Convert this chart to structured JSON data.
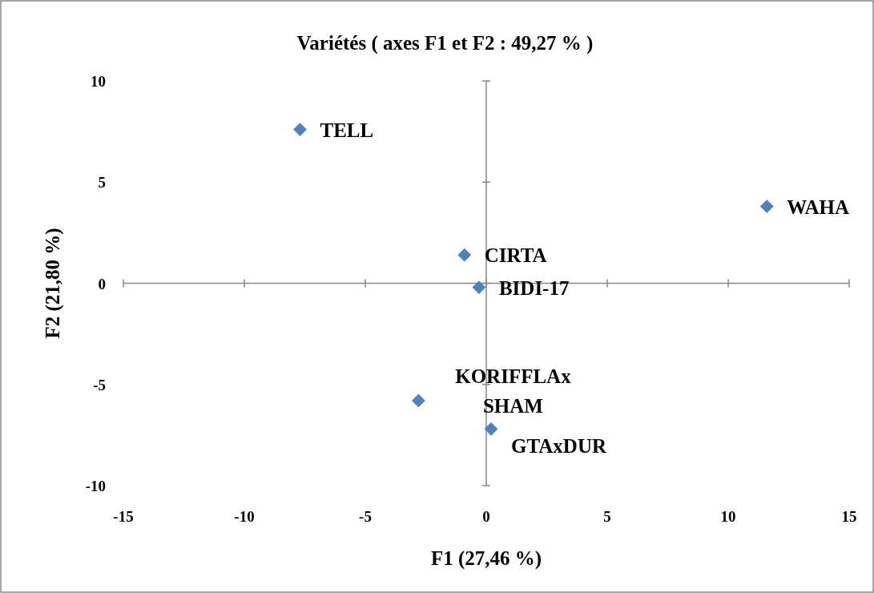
{
  "chart_data": {
    "type": "scatter",
    "title": "Variétés ( axes F1 et F2 : 49,27 % )",
    "xlabel": "F1 (27,46 %)",
    "ylabel": "F2 (21,80 %)",
    "x": [
      -7.7,
      11.6,
      -0.9,
      -0.3,
      -2.8,
      0.2
    ],
    "values": [
      7.6,
      3.8,
      1.4,
      -0.2,
      -5.8,
      -7.2
    ],
    "color": "#4f81bd",
    "marker": "diamond",
    "xlim": [
      -15,
      15
    ],
    "xticks": [
      -15,
      -10,
      -5,
      0,
      5,
      10,
      15
    ],
    "ylim": [
      -10,
      10
    ],
    "yticks": [
      -10,
      -5,
      0,
      5,
      10
    ],
    "annotations": [
      {
        "text": "TELL",
        "x": -7.7,
        "y": 7.6
      },
      {
        "text": "WAHA",
        "x": 11.6,
        "y": 3.8
      },
      {
        "text": "CIRTA",
        "x": -0.9,
        "y": 1.4
      },
      {
        "text": "BIDI-17",
        "x": -0.3,
        "y": -0.2
      },
      {
        "text": "KORIFFLAx\nSHAM",
        "x": -2.8,
        "y": -5.8
      },
      {
        "text": "GTAxDUR",
        "x": 0.2,
        "y": -7.2
      }
    ]
  }
}
